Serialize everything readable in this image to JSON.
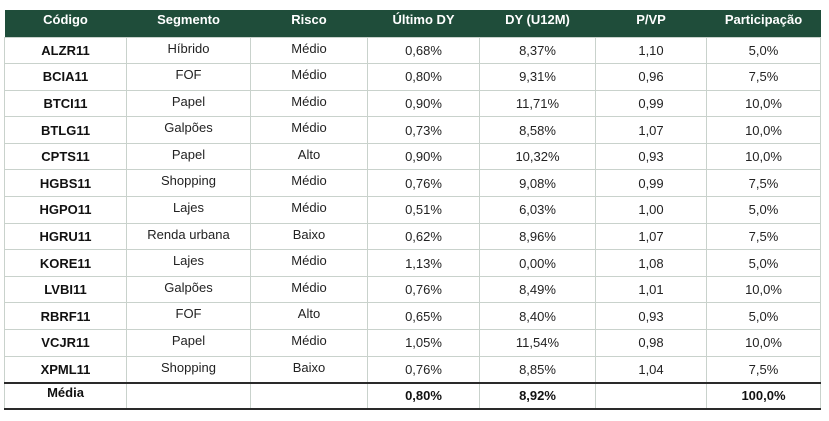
{
  "table": {
    "headers": [
      "Código",
      "Segmento",
      "Risco",
      "Último DY",
      "DY (U12M)",
      "P/VP",
      "Participação"
    ],
    "rows": [
      [
        "ALZR11",
        "Híbrido",
        "Médio",
        "0,68%",
        "8,37%",
        "1,10",
        "5,0%"
      ],
      [
        "BCIA11",
        "FOF",
        "Médio",
        "0,80%",
        "9,31%",
        "0,96",
        "7,5%"
      ],
      [
        "BTCI11",
        "Papel",
        "Médio",
        "0,90%",
        "11,71%",
        "0,99",
        "10,0%"
      ],
      [
        "BTLG11",
        "Galpões",
        "Médio",
        "0,73%",
        "8,58%",
        "1,07",
        "10,0%"
      ],
      [
        "CPTS11",
        "Papel",
        "Alto",
        "0,90%",
        "10,32%",
        "0,93",
        "10,0%"
      ],
      [
        "HGBS11",
        "Shopping",
        "Médio",
        "0,76%",
        "9,08%",
        "0,99",
        "7,5%"
      ],
      [
        "HGPO11",
        "Lajes",
        "Médio",
        "0,51%",
        "6,03%",
        "1,00",
        "5,0%"
      ],
      [
        "HGRU11",
        "Renda urbana",
        "Baixo",
        "0,62%",
        "8,96%",
        "1,07",
        "7,5%"
      ],
      [
        "KORE11",
        "Lajes",
        "Médio",
        "1,13%",
        "0,00%",
        "1,08",
        "5,0%"
      ],
      [
        "LVBI11",
        "Galpões",
        "Médio",
        "0,76%",
        "8,49%",
        "1,01",
        "10,0%"
      ],
      [
        "RBRF11",
        "FOF",
        "Alto",
        "0,65%",
        "8,40%",
        "0,93",
        "5,0%"
      ],
      [
        "VCJR11",
        "Papel",
        "Médio",
        "1,05%",
        "11,54%",
        "0,98",
        "10,0%"
      ],
      [
        "XPML11",
        "Shopping",
        "Baixo",
        "0,76%",
        "8,85%",
        "1,04",
        "7,5%"
      ]
    ],
    "footer": [
      "Média",
      "",
      "",
      "0,80%",
      "8,92%",
      "",
      "100,0%"
    ]
  },
  "colors": {
    "header_bg": "#1f4d3a",
    "header_text": "#ffffff",
    "grid_line": "#c9d2cc"
  }
}
